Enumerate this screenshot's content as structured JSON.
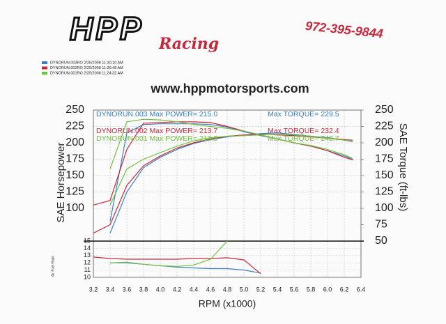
{
  "header": {
    "logo": "HPP",
    "logo_sub": "Racing",
    "phone": "972-395-9844",
    "website": "www.hppmotorsports.com"
  },
  "chart_data": [
    {
      "type": "line",
      "ylabel": "SAE Horsepower",
      "y2label": "SAE Torque (ft-lbs)",
      "xlabel": "RPM (x1000)",
      "x": [
        3.2,
        3.4,
        3.6,
        3.8,
        4.0,
        4.2,
        4.4,
        4.6,
        4.8,
        5.0,
        5.2,
        5.4,
        5.6,
        5.8,
        6.0,
        6.2,
        6.3
      ],
      "xlim": [
        3.2,
        6.4
      ],
      "xticks": [
        3.2,
        3.4,
        3.6,
        3.8,
        {
          "value": 4,
          "label": "4.0"
        },
        4.2,
        4.4,
        4.6,
        4.8,
        {
          "value": 5,
          "label": "5.0"
        },
        5.2,
        5.4,
        5.6,
        5.8,
        {
          "value": 6,
          "label": "6.0"
        },
        6.2,
        6.4
      ],
      "ylim": [
        50,
        250
      ],
      "yticks": [
        100,
        125,
        150,
        175,
        200,
        225,
        250
      ],
      "y2lim": [
        50,
        250
      ],
      "y2ticks": [
        50,
        75,
        100,
        125,
        150,
        175,
        200,
        225,
        250
      ],
      "grid": true,
      "series": [
        {
          "name": "DYNORUN.003RO  2/25/2008 11:30:10 AM",
          "color": "#3a7fc4",
          "hp": [
            null,
            62,
            125,
            162,
            178,
            190,
            199,
            205,
            209,
            212,
            214,
            215,
            213,
            210,
            208,
            204,
            202
          ],
          "torque": [
            null,
            80,
            215,
            228,
            229,
            229,
            229,
            228,
            224,
            217,
            211,
            206,
            200,
            195,
            188,
            180,
            175
          ]
        },
        {
          "name": "DYNORUN.002RO  2/25/2008 11:26:48 AM",
          "color": "#c8283c",
          "hp": [
            62,
            75,
            135,
            165,
            180,
            192,
            200,
            206,
            210,
            212,
            213,
            212,
            211,
            209,
            207,
            205,
            204
          ],
          "torque": [
            105,
            112,
            190,
            230,
            231,
            232,
            232,
            231,
            225,
            218,
            212,
            206,
            200,
            195,
            188,
            178,
            174
          ]
        },
        {
          "name": "DYNORUN.001RO  2/25/2008 11:24:32 AM",
          "color": "#6ec23c",
          "hp": [
            null,
            105,
            160,
            175,
            185,
            195,
            203,
            208,
            210,
            211,
            212,
            213,
            212,
            210,
            207,
            204,
            203
          ],
          "torque": [
            null,
            160,
            232,
            236,
            235,
            232,
            228,
            225,
            222,
            218,
            212,
            206,
            200,
            196,
            190,
            182,
            176
          ]
        }
      ],
      "annotations": [
        "DYNORUN.003  Max POWER= 215.0",
        "Max TORQUE= 229.5",
        "DYNORUN.002  Max POWER= 213.7",
        "Max TORQUE= 232.4",
        "DYNORUN.001  Max POWER= 213.8",
        "Max TORQUE= 242.7"
      ]
    },
    {
      "type": "line",
      "ylabel": "Air Fuel Ratio",
      "x": [
        3.2,
        3.4,
        3.6,
        3.8,
        4.0,
        4.2,
        4.4,
        4.6,
        4.8,
        5.0,
        5.2
      ],
      "xlim": [
        3.2,
        6.4
      ],
      "ylim": [
        10,
        15
      ],
      "yticks": [
        10,
        11,
        12,
        13,
        14,
        15
      ],
      "series": [
        {
          "color": "#3a7fc4",
          "values": [
            null,
            12.0,
            12.0,
            11.8,
            11.6,
            11.4,
            11.3,
            11.2,
            11.2,
            11.0,
            10.6
          ]
        },
        {
          "color": "#c8283c",
          "values": [
            12.8,
            12.6,
            12.5,
            12.5,
            12.5,
            12.5,
            12.6,
            12.6,
            12.7,
            12.4,
            10.5
          ]
        },
        {
          "color": "#6ec23c",
          "values": [
            null,
            12.0,
            12.1,
            11.8,
            11.6,
            11.5,
            11.7,
            12.5,
            15,
            null,
            null
          ]
        }
      ]
    }
  ]
}
